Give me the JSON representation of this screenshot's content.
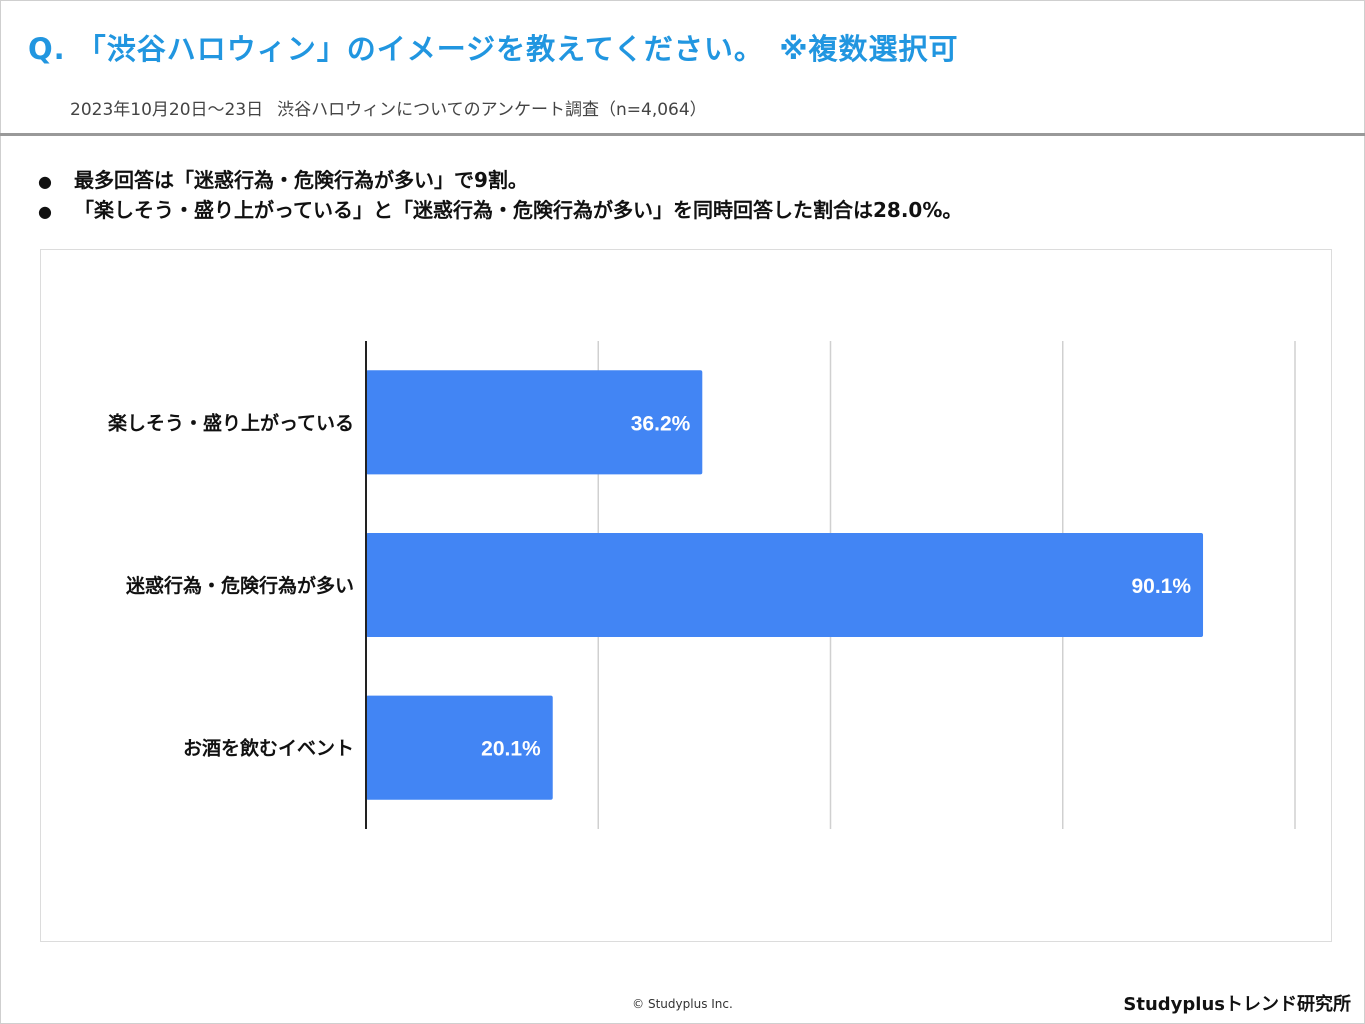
{
  "header": {
    "question": "Q. 「渋谷ハロウィン」のイメージを教えてください。　※複数選択可",
    "date_range": "2023年10月20日〜23日",
    "survey": "渋谷ハロウィンについてのアンケート調査（n=4,064）"
  },
  "summary": {
    "bullets": [
      "最多回答は「迷惑行為・危険行為が多い」で9割。",
      "「楽しそう・盛り上がっている」と「迷惑行為・危険行為が多い」を同時回答した割合は28.0%。"
    ],
    "bullet_symbol": "●"
  },
  "chart_data": {
    "type": "bar",
    "orientation": "horizontal",
    "categories": [
      "楽しそう・盛り上がっている",
      "迷惑行為・危険行為が多い",
      "お酒を飲むイベント"
    ],
    "values": [
      36.2,
      90.1,
      20.1
    ],
    "data_labels": [
      "36.2%",
      "90.1%",
      "20.1%"
    ],
    "xlim": [
      0,
      100
    ],
    "gridlines": [
      25,
      50,
      75,
      100
    ],
    "bar_color": "#4285f4",
    "label_color": "#ffffff",
    "grid_color": "#d0d0d0",
    "axis_color": "#222222"
  },
  "footer": {
    "copyright": "© Studyplus Inc.",
    "brand": "Studyplusトレンド研究所"
  }
}
